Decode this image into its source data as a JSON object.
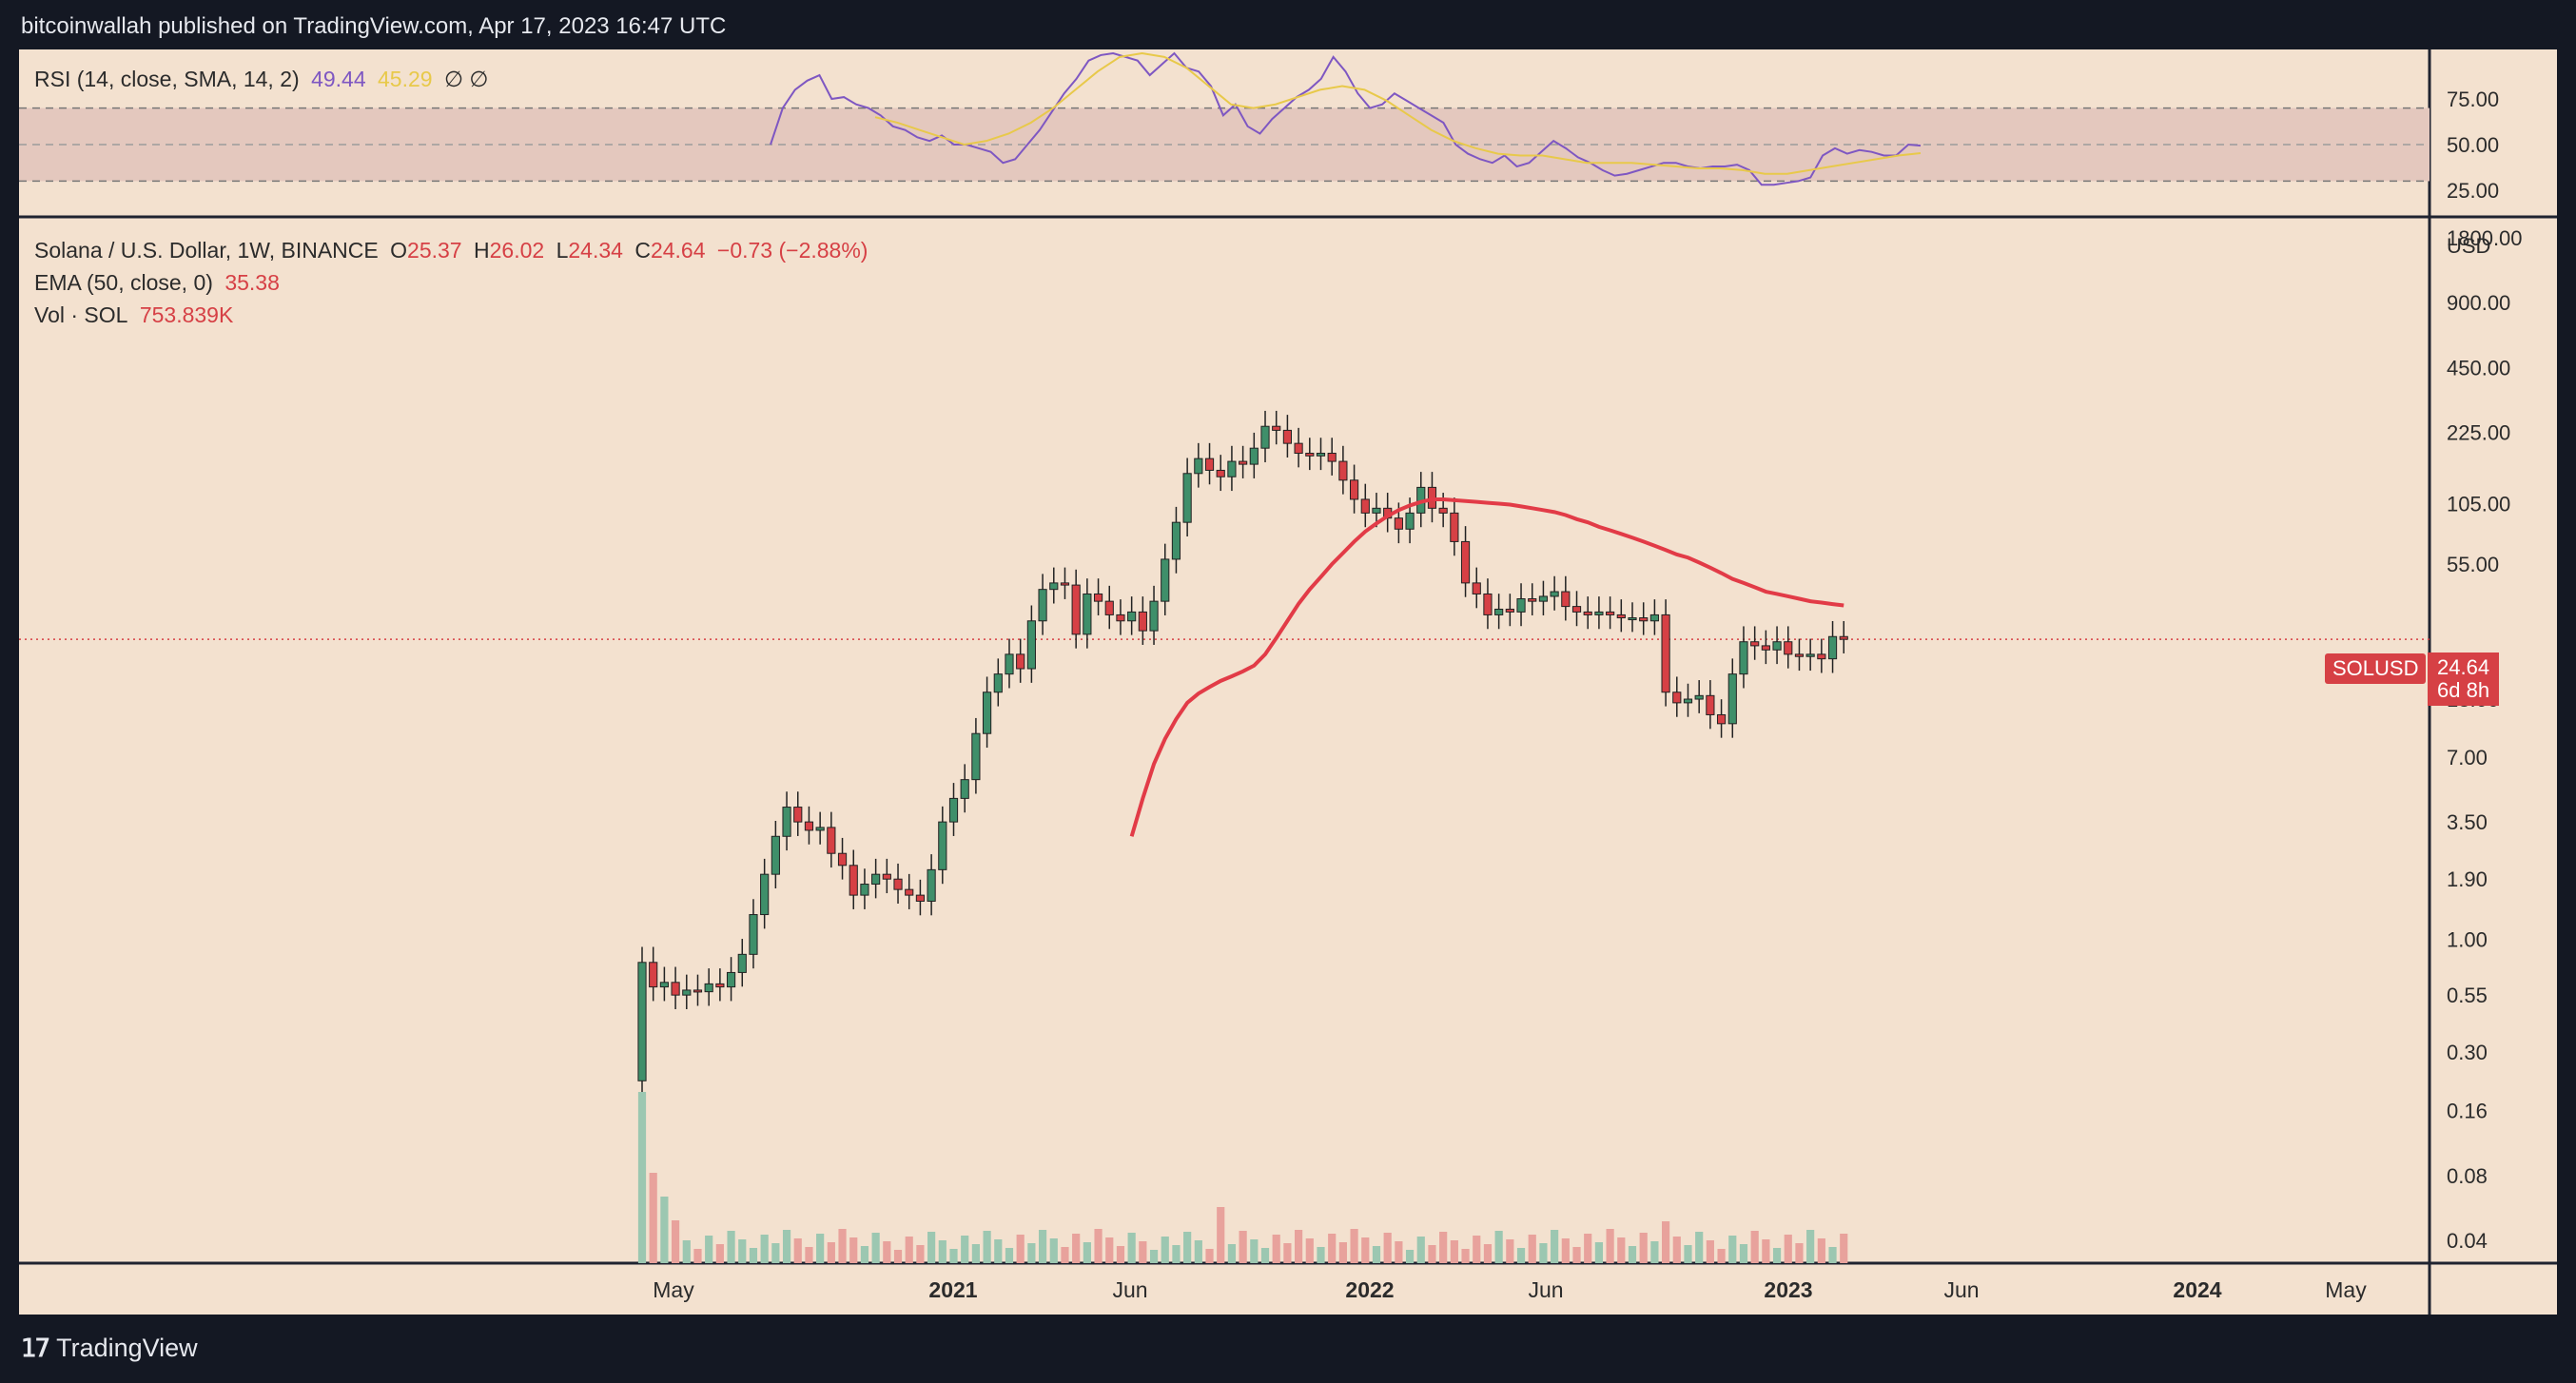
{
  "header": {
    "published_by": "bitcoinwallah published on TradingView.com, Apr 17, 2023 16:47 UTC"
  },
  "footer": {
    "logo_text": "TradingView"
  },
  "legend": {
    "rsi": {
      "label": "RSI (14, close, SMA, 14, 2)",
      "value": "49.44",
      "sma_value": "45.29",
      "extra": "∅ ∅"
    },
    "symbol": {
      "label": "Solana / U.S. Dollar, 1W, BINANCE",
      "o_label": "O",
      "o": "25.37",
      "h_label": "H",
      "h": "26.02",
      "l_label": "L",
      "l": "24.34",
      "c_label": "C",
      "c": "24.64",
      "change": "−0.73 (−2.88%)"
    },
    "ema": {
      "label": "EMA (50, close, 0)",
      "value": "35.38"
    },
    "vol": {
      "label": "Vol · SOL",
      "value": "753.839K"
    }
  },
  "badges": {
    "symbol": "SOLUSD",
    "price": "24.64",
    "countdown": "6d 8h"
  },
  "colors": {
    "up": "#3f8f6a",
    "down": "#d64045",
    "ema": "#e23b47",
    "rsi": "#7e57c2",
    "rsi_sma": "#e8c94a",
    "bg": "#f3e1cf",
    "frame": "#141823"
  },
  "chart_data": {
    "type": "candlestick",
    "title": "Solana / U.S. Dollar, 1W, BINANCE",
    "y_scale": "log",
    "currency_label": "USD",
    "y_ticks": [
      "1800.00",
      "900.00",
      "450.00",
      "225.00",
      "105.00",
      "55.00",
      "13.00",
      "7.00",
      "3.50",
      "1.90",
      "1.00",
      "0.55",
      "0.30",
      "0.16",
      "0.08",
      "0.04"
    ],
    "x_ticks": [
      "May",
      "2021",
      "Jun",
      "2022",
      "Jun",
      "2023",
      "Jun",
      "2024",
      "May"
    ],
    "rsi_ticks": [
      "75.00",
      "50.00",
      "25.00"
    ],
    "last_price": 24.64,
    "closes": [
      0.78,
      0.6,
      0.63,
      0.55,
      0.58,
      0.57,
      0.62,
      0.6,
      0.7,
      0.85,
      1.3,
      2.0,
      3.0,
      4.1,
      3.5,
      3.2,
      3.3,
      2.5,
      2.2,
      1.6,
      1.8,
      2.0,
      1.9,
      1.7,
      1.6,
      1.5,
      2.1,
      3.5,
      4.5,
      5.5,
      9.0,
      14.0,
      17.0,
      21.0,
      18.0,
      30.0,
      42.0,
      45.0,
      44.0,
      26.0,
      40.0,
      37.0,
      32.0,
      30.0,
      33.0,
      27.0,
      37.0,
      58.0,
      86.0,
      145.0,
      170.0,
      150.0,
      140.0,
      165.0,
      160.0,
      190.0,
      240.0,
      230.0,
      200.0,
      180.0,
      175.0,
      180.0,
      165.0,
      135.0,
      110.0,
      95.0,
      100.0,
      90.0,
      80.0,
      95.0,
      125.0,
      100.0,
      95.0,
      70.0,
      45.0,
      40.0,
      32.0,
      34.0,
      33.0,
      38.0,
      37.0,
      39.0,
      41.0,
      35.0,
      33.0,
      32.0,
      33.0,
      32.0,
      31.0,
      31.0,
      30.0,
      32.0,
      14.0,
      12.5,
      13.0,
      13.5,
      11.0,
      10.0,
      17.0,
      24.0,
      23.0,
      22.0,
      24.0,
      21.0,
      20.5,
      21.0,
      20.0,
      25.37,
      24.64
    ],
    "ema50": [
      3.0,
      4.5,
      6.5,
      8.5,
      10.5,
      12.5,
      13.8,
      14.8,
      15.8,
      16.6,
      17.5,
      18.6,
      21.0,
      25.0,
      30.0,
      36.0,
      42.0,
      48.0,
      55.0,
      62.0,
      70.0,
      78.0,
      85.0,
      92.0,
      98.0,
      103.0,
      107.0,
      110.0,
      110.0,
      109.0,
      108.0,
      107.0,
      106.0,
      105.0,
      104.0,
      102.0,
      100.0,
      98.0,
      96.0,
      93.0,
      89.0,
      86.0,
      82.0,
      79.0,
      76.0,
      73.0,
      70.0,
      67.0,
      64.0,
      61.0,
      59.0,
      56.0,
      53.0,
      50.0,
      47.0,
      45.0,
      43.0,
      41.0,
      40.0,
      39.0,
      38.0,
      37.0,
      36.5,
      35.9,
      35.38
    ],
    "rsi": [
      50,
      70,
      80,
      85,
      88,
      75,
      76,
      72,
      70,
      66,
      60,
      58,
      54,
      52,
      55,
      50,
      50,
      48,
      46,
      40,
      42,
      50,
      58,
      68,
      78,
      86,
      96,
      99,
      100,
      98,
      96,
      88,
      94,
      100,
      92,
      90,
      82,
      66,
      72,
      60,
      56,
      64,
      70,
      76,
      80,
      86,
      98,
      90,
      78,
      70,
      72,
      78,
      74,
      70,
      66,
      62,
      50,
      45,
      42,
      40,
      44,
      38,
      40,
      46,
      52,
      48,
      43,
      40,
      36,
      33,
      34,
      36,
      38,
      40,
      40,
      38,
      37,
      38,
      38,
      39,
      36,
      28,
      28,
      29,
      30,
      32,
      44,
      48,
      45,
      47,
      46,
      44,
      44,
      50,
      49.44
    ],
    "rsi_sma": [
      65,
      62,
      58,
      54,
      50,
      52,
      56,
      62,
      70,
      80,
      90,
      98,
      100,
      98,
      92,
      82,
      72,
      70,
      72,
      76,
      80,
      82,
      80,
      74,
      66,
      58,
      52,
      48,
      45,
      44,
      44,
      42,
      40,
      40,
      40,
      39,
      38,
      37,
      37,
      36,
      34,
      34,
      36,
      38,
      40,
      42,
      44,
      45.29
    ]
  }
}
